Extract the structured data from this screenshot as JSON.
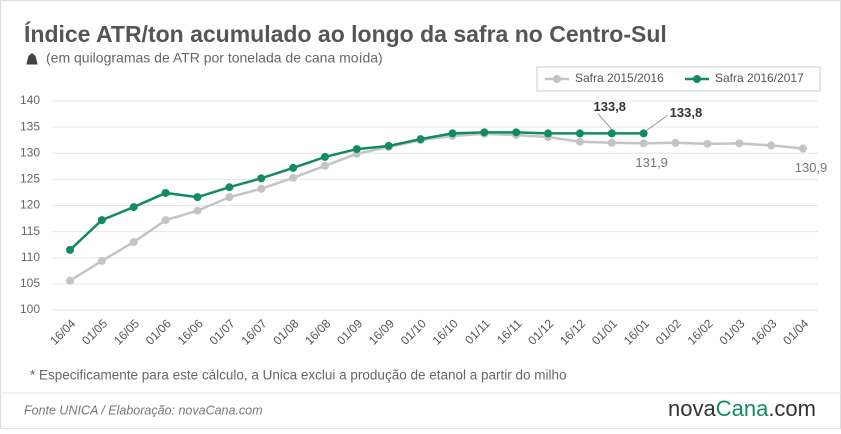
{
  "chart_data": {
    "type": "line",
    "title": "Índice ATR/ton acumulado ao longo da safra no Centro-Sul",
    "subtitle": "(em quilogramas de ATR por tonelada de cana moída)",
    "note": "* Especificamente para este cálculo, a Unica exclui a produção de etanol a partir do milho",
    "source": "Fonte UNICA / Elaboração: novaCana.com",
    "brand": [
      "nova",
      "Cana",
      ".com"
    ],
    "categories": [
      "16/04",
      "01/05",
      "16/05",
      "01/06",
      "16/06",
      "01/07",
      "16/07",
      "01/08",
      "16/08",
      "01/09",
      "16/09",
      "01/10",
      "16/10",
      "01/11",
      "16/11",
      "01/12",
      "16/12",
      "01/01",
      "16/01",
      "01/02",
      "16/02",
      "01/03",
      "16/03",
      "01/04"
    ],
    "series": [
      {
        "name": "Safra 2015/2016",
        "color": "#c4c4c4",
        "values": [
          105.6,
          109.4,
          113.0,
          117.2,
          119.0,
          121.6,
          123.2,
          125.3,
          127.6,
          129.9,
          131.2,
          132.5,
          133.3,
          133.7,
          133.5,
          133.1,
          132.2,
          132.0,
          131.9,
          132.0,
          131.8,
          131.9,
          131.5,
          130.9
        ],
        "value_labels": [
          null,
          null,
          null,
          null,
          null,
          null,
          null,
          null,
          null,
          null,
          null,
          null,
          null,
          null,
          null,
          null,
          null,
          null,
          "131,9",
          null,
          null,
          null,
          null,
          "130,9"
        ]
      },
      {
        "name": "Safra 2016/2017",
        "color": "#128a63",
        "values": [
          111.5,
          117.2,
          119.7,
          122.4,
          121.6,
          123.5,
          125.2,
          127.2,
          129.3,
          130.8,
          131.4,
          132.7,
          133.8,
          134.0,
          134.0,
          133.8,
          133.8,
          133.8,
          133.8,
          null,
          null,
          null,
          null,
          null
        ],
        "value_labels": [
          null,
          null,
          null,
          null,
          null,
          null,
          null,
          null,
          null,
          null,
          null,
          null,
          null,
          null,
          null,
          null,
          null,
          "133,8",
          "133,8",
          null,
          null,
          null,
          null,
          null
        ]
      }
    ],
    "ylim": [
      100,
      140
    ],
    "yticks": [
      100,
      105,
      110,
      115,
      120,
      125,
      130,
      135,
      140
    ],
    "grid": true,
    "legend": "top-right"
  }
}
